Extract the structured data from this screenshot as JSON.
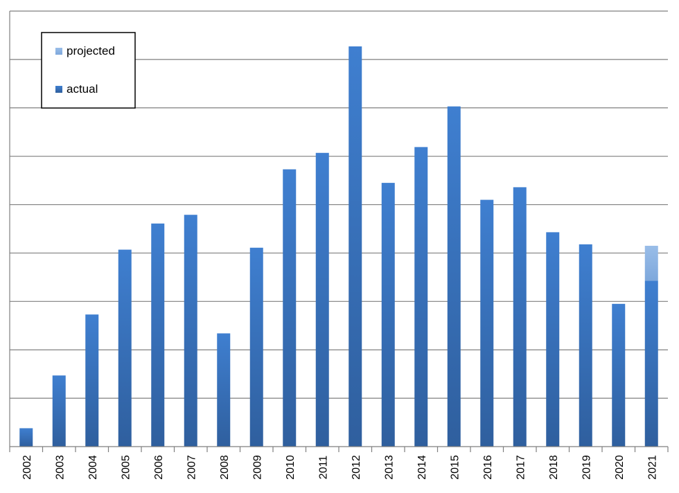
{
  "chart_data": {
    "type": "bar",
    "stacked": true,
    "title": "",
    "xlabel": "",
    "ylabel": "",
    "ylim": [
      0,
      9
    ],
    "grid": true,
    "ytick_labels_visible": false,
    "legend_position": "top-left",
    "categories": [
      "2002",
      "2003",
      "2004",
      "2005",
      "2006",
      "2007",
      "2008",
      "2009",
      "2010",
      "2011",
      "2012",
      "2013",
      "2014",
      "2015",
      "2016",
      "2017",
      "2018",
      "2019",
      "2020",
      "2021"
    ],
    "series": [
      {
        "name": "actual",
        "color": "#3a76c4",
        "values": [
          0.38,
          1.47,
          2.73,
          4.07,
          4.61,
          4.79,
          2.34,
          4.11,
          5.73,
          6.07,
          8.27,
          5.45,
          6.19,
          7.03,
          5.1,
          5.36,
          4.43,
          4.18,
          2.95,
          3.43
        ]
      },
      {
        "name": "projected",
        "color": "#8db3e2",
        "values": [
          0,
          0,
          0,
          0,
          0,
          0,
          0,
          0,
          0,
          0,
          0,
          0,
          0,
          0,
          0,
          0,
          0,
          0,
          0,
          0.72
        ]
      }
    ]
  }
}
